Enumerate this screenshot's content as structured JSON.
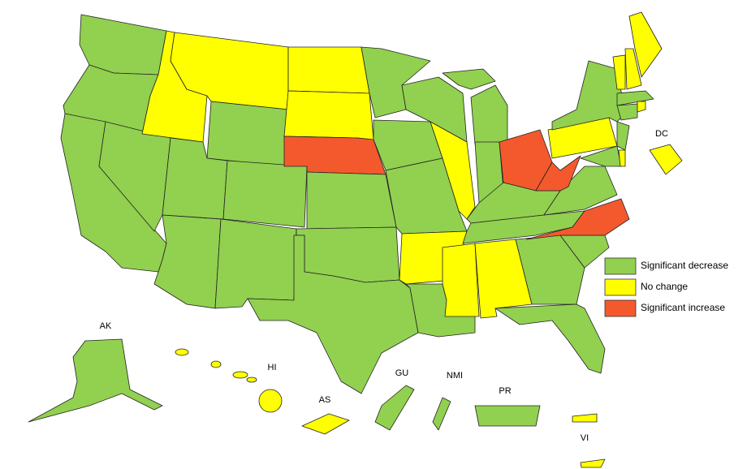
{
  "legend": [
    {
      "label": "Significant decrease",
      "color": "#92d050"
    },
    {
      "label": "No change",
      "color": "#ffff00"
    },
    {
      "label": "Significant increase",
      "color": "#f4592e"
    }
  ],
  "labels": [
    "AK",
    "HI",
    "AS",
    "GU",
    "NMI",
    "PR",
    "VI",
    "DC"
  ]
}
